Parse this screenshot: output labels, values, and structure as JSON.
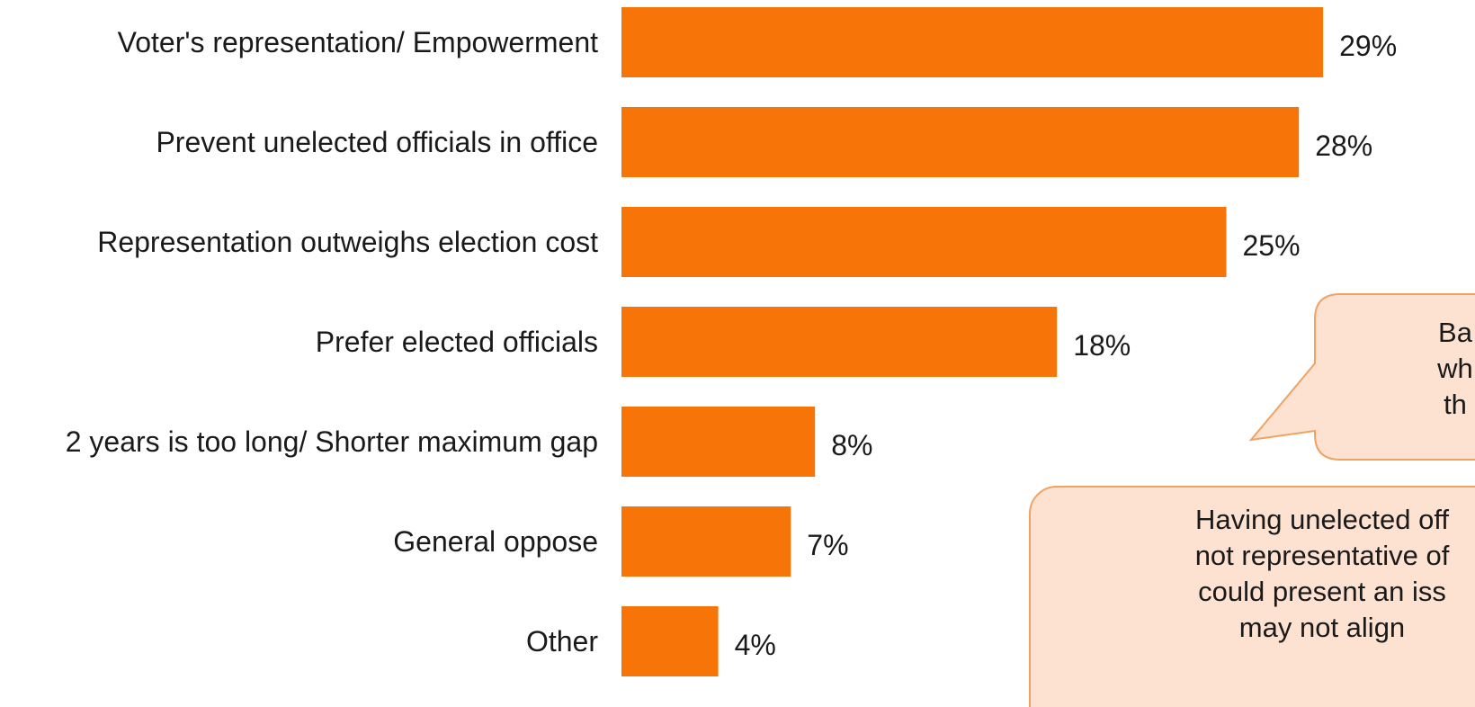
{
  "colors": {
    "bar": "#f77408",
    "callout_fill": "#fde2d2",
    "callout_border": "#f0a263"
  },
  "chart_data": {
    "type": "bar",
    "orientation": "horizontal",
    "categories": [
      "Voter's representation/ Empowerment",
      "Prevent unelected officials in office",
      "Representation outweighs election cost",
      "Prefer elected officials",
      "2 years is too long/ Shorter maximum gap",
      "General oppose",
      "Other"
    ],
    "values": [
      29,
      28,
      25,
      18,
      8,
      7,
      4
    ],
    "value_labels": [
      "29%",
      "28%",
      "25%",
      "18%",
      "8%",
      "7%",
      "4%"
    ],
    "unit": "%",
    "title": "",
    "xlabel": "",
    "ylabel": "",
    "grid": false,
    "legend": "none"
  },
  "callouts": [
    {
      "lines": [
        "Ba",
        "wh",
        "th"
      ]
    },
    {
      "lines": [
        "Having unelected off",
        "not representative of",
        "could present an iss",
        "may not align"
      ]
    }
  ]
}
